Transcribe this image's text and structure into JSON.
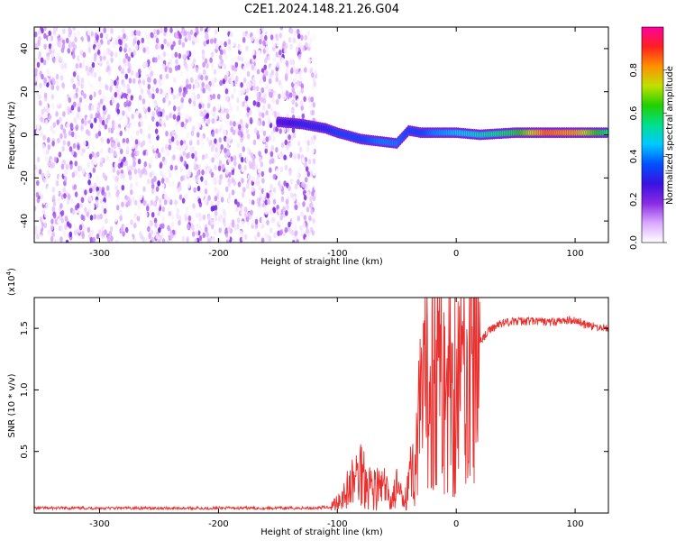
{
  "chart_data": [
    {
      "type": "heatmap",
      "title": "C2E1.2024.148.21.26.G04",
      "xlabel": "Height of straight line (km)",
      "ylabel": "Frequency (Hz)",
      "xlim": [
        -355,
        128
      ],
      "ylim": [
        -50,
        50
      ],
      "x_ticks": [
        -300,
        -200,
        -100,
        0,
        100
      ],
      "y_ticks": [
        -40,
        -20,
        0,
        20,
        40
      ],
      "colorbar": {
        "label": "Normalized spectral amplitude",
        "range": [
          0.0,
          1.0
        ],
        "ticks": [
          "0.0",
          "0.2",
          "0.4",
          "0.6",
          "0.8"
        ],
        "colors": [
          "#ffffff",
          "#d9a8ff",
          "#8a2be2",
          "#3a10e0",
          "#0050ff",
          "#00c8ff",
          "#00e090",
          "#20d000",
          "#c0e000",
          "#ff9000",
          "#ff2020",
          "#ff00a0"
        ]
      },
      "signal_ridge": [
        {
          "x": -150,
          "freq": 6,
          "amp": 0.25
        },
        {
          "x": -130,
          "freq": 5,
          "amp": 0.3
        },
        {
          "x": -110,
          "freq": 3,
          "amp": 0.3
        },
        {
          "x": -100,
          "freq": 1,
          "amp": 0.35
        },
        {
          "x": -80,
          "freq": -2,
          "amp": 0.35
        },
        {
          "x": -65,
          "freq": -3,
          "amp": 0.4
        },
        {
          "x": -50,
          "freq": -4,
          "amp": 0.4
        },
        {
          "x": -40,
          "freq": 2,
          "amp": 0.35
        },
        {
          "x": -30,
          "freq": 1,
          "amp": 0.35
        },
        {
          "x": -20,
          "freq": 1,
          "amp": 0.4
        },
        {
          "x": 0,
          "freq": 1,
          "amp": 0.45
        },
        {
          "x": 20,
          "freq": 0,
          "amp": 0.5
        },
        {
          "x": 50,
          "freq": 1,
          "amp": 0.6
        },
        {
          "x": 75,
          "freq": 1,
          "amp": 0.85
        },
        {
          "x": 100,
          "freq": 1,
          "amp": 0.8
        },
        {
          "x": 128,
          "freq": 1,
          "amp": 0.55
        }
      ]
    },
    {
      "type": "line",
      "xlabel": "Height of straight line (km)",
      "ylabel": "SNR (10 * v/v)",
      "y_multiplier": "(x10",
      "y_multiplier_exp": "4",
      "y_multiplier_close": ")",
      "xlim": [
        -355,
        128
      ],
      "ylim": [
        0.0,
        1.75
      ],
      "x_ticks": [
        -300,
        -200,
        -100,
        0,
        100
      ],
      "y_ticks": [
        "0.5",
        "1.0",
        "1.5"
      ],
      "y_tick_values": [
        0.5,
        1.0,
        1.5
      ],
      "color": "#e8302e",
      "series": [
        {
          "x": [
            -355,
            -300,
            -250,
            -200,
            -150,
            -120,
            -105,
            -100,
            -90,
            -80,
            -70,
            -60,
            -55,
            -50,
            -45,
            -40,
            -35,
            -30,
            -25,
            -20,
            -15,
            -10,
            -5,
            0,
            5,
            10,
            15,
            20,
            30,
            40,
            60,
            80,
            100,
            110,
            128
          ],
          "y": [
            0.04,
            0.04,
            0.04,
            0.04,
            0.04,
            0.04,
            0.05,
            0.1,
            0.2,
            0.35,
            0.2,
            0.2,
            0.1,
            0.2,
            0.1,
            0.3,
            0.35,
            0.8,
            1.0,
            1.2,
            1.2,
            1.0,
            1.05,
            1.08,
            1.15,
            1.25,
            1.32,
            1.4,
            1.5,
            1.55,
            1.56,
            1.55,
            1.57,
            1.52,
            1.5
          ]
        }
      ]
    }
  ]
}
